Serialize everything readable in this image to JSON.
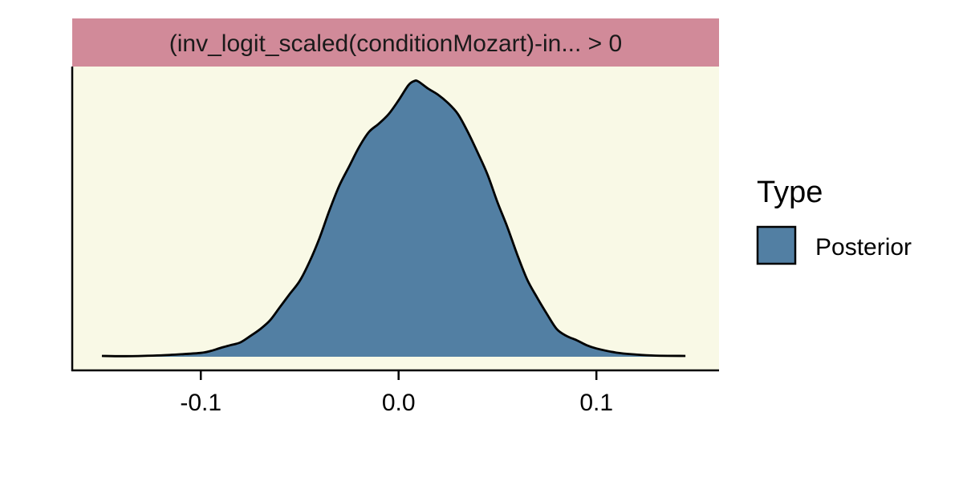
{
  "chart_data": {
    "type": "area",
    "facet_label": "(inv_logit_scaled(conditionMozart)-in... > 0",
    "xlabel": "",
    "ylabel": "",
    "xlim": [
      -0.165,
      0.162
    ],
    "ylim": [
      0,
      1.0
    ],
    "x_ticks": [
      -0.1,
      0.0,
      0.1
    ],
    "x_tick_labels": [
      "-0.1",
      "0.0",
      "0.1"
    ],
    "y_axis_labels_shown": false,
    "grid": false,
    "legend": {
      "title": "Type",
      "position": "right",
      "entries": [
        {
          "label": "Posterior",
          "color": "#527fa3"
        }
      ]
    },
    "series": [
      {
        "name": "Posterior",
        "color": "#527fa3",
        "outline": "#000000",
        "x": [
          -0.15,
          -0.14,
          -0.13,
          -0.12,
          -0.11,
          -0.1,
          -0.095,
          -0.09,
          -0.085,
          -0.08,
          -0.075,
          -0.07,
          -0.065,
          -0.06,
          -0.055,
          -0.05,
          -0.045,
          -0.04,
          -0.035,
          -0.03,
          -0.025,
          -0.02,
          -0.015,
          -0.01,
          -0.005,
          0.0,
          0.005,
          0.008,
          0.01,
          0.015,
          0.02,
          0.025,
          0.03,
          0.035,
          0.04,
          0.045,
          0.05,
          0.055,
          0.06,
          0.065,
          0.07,
          0.075,
          0.08,
          0.085,
          0.09,
          0.095,
          0.1,
          0.11,
          0.12,
          0.13,
          0.145
        ],
        "y": [
          0.003,
          0.002,
          0.003,
          0.005,
          0.009,
          0.014,
          0.021,
          0.032,
          0.042,
          0.052,
          0.075,
          0.1,
          0.132,
          0.18,
          0.228,
          0.275,
          0.345,
          0.43,
          0.53,
          0.62,
          0.69,
          0.76,
          0.815,
          0.845,
          0.88,
          0.93,
          0.985,
          1.0,
          0.998,
          0.972,
          0.95,
          0.92,
          0.88,
          0.815,
          0.74,
          0.66,
          0.56,
          0.47,
          0.37,
          0.28,
          0.215,
          0.155,
          0.1,
          0.075,
          0.06,
          0.042,
          0.03,
          0.015,
          0.008,
          0.004,
          0.003
        ]
      }
    ]
  },
  "colors": {
    "panel_background": "#f9f9e6",
    "strip_background": "#d18a99",
    "fill": "#527fa3",
    "axis": "#000000"
  }
}
